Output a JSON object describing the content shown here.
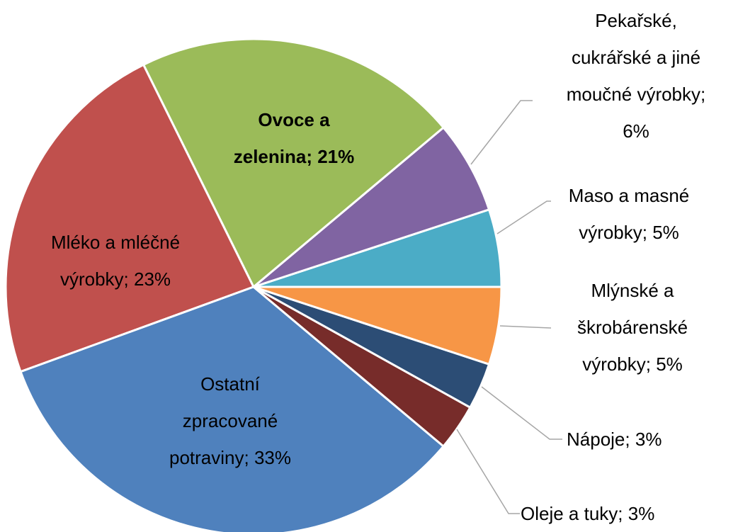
{
  "chart_data": {
    "type": "pie",
    "categories": [
      "Mlýnské a škrobárenské výrobky",
      "Nápoje",
      "Oleje a tuky",
      "Ostatní zpracované potraviny",
      "Mléko a mléčné výrobky",
      "Ovoce a zelenina",
      "Pekařské, cukrářské a jiné moučné výrobky",
      "Maso a masné výrobky"
    ],
    "values": [
      5,
      3,
      3,
      33,
      23,
      21,
      6,
      5
    ],
    "value_labels": [
      "5%",
      "3%",
      "3%",
      "33%",
      "23%",
      "21%",
      "6%",
      "5%"
    ],
    "label_separator": "; ",
    "colors": [
      "#f79646",
      "#2c4d75",
      "#772c2a",
      "#4f81bd",
      "#c0504d",
      "#9bbb59",
      "#8064a2",
      "#4bacc6"
    ]
  }
}
